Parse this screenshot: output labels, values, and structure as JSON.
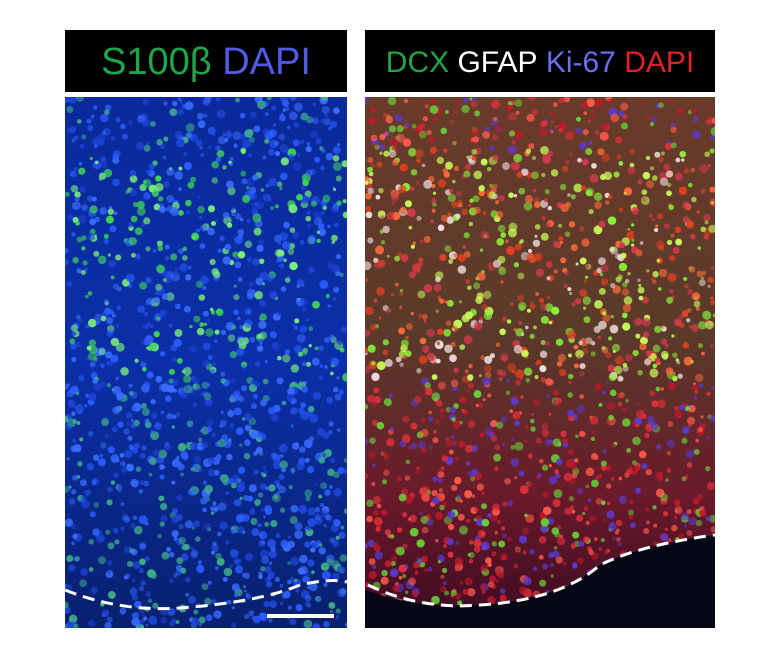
{
  "panels": [
    {
      "stains": [
        {
          "text": "S100β",
          "color": "#1fa64a"
        },
        {
          "text": "DAPI",
          "color": "#4f5be0"
        }
      ]
    },
    {
      "stains": [
        {
          "text": "DCX",
          "color": "#1fa64a"
        },
        {
          "text": "GFAP",
          "color": "#ffffff"
        },
        {
          "text": "Ki-67",
          "color": "#6a6ff0"
        },
        {
          "text": "DAPI",
          "color": "#e0202a"
        }
      ]
    }
  ]
}
